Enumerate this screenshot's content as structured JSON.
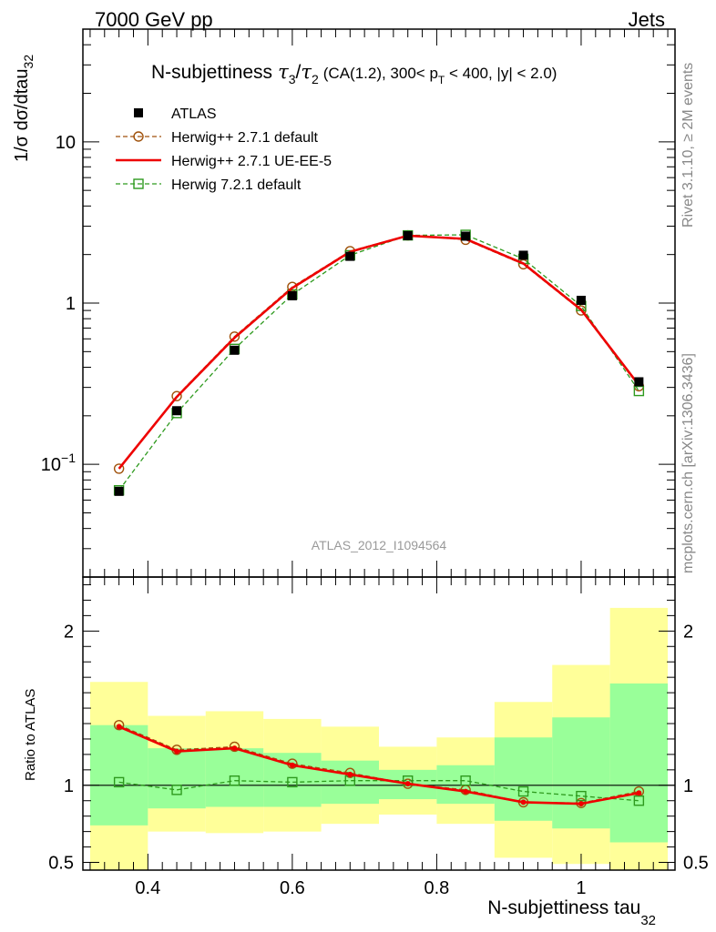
{
  "header": {
    "left": "7000 GeV pp",
    "right": "Jets"
  },
  "title": {
    "main": "N-subjettiness",
    "tau3": "τ",
    "tau3sub": "3",
    "slash": "/",
    "tau2": "τ",
    "tau2sub": "2",
    "detail_a": "(CA(1.2), 300< p",
    "detail_sub": "T",
    "detail_b": " < 400, |y| < 2.0)"
  },
  "side_labels": {
    "rivet": "Rivet 3.1.10, ≥ 2M events",
    "mcplots": "mcplots.cern.ch [arXiv:1306.3436]"
  },
  "watermark": "ATLAS_2012_I1094564",
  "colors": {
    "data": "#000000",
    "herwig_default": "#a0520c",
    "herwig_ueee5": "#ee0000",
    "herwig7": "#2e9a1e",
    "band_inner": "#99ff99",
    "band_outer": "#ffff99",
    "axis": "#000000"
  },
  "chart_data": {
    "type": "line",
    "top": {
      "ylabel_main": "1/σ dσ/dtau",
      "ylabel_sub": "32",
      "yscale": "log",
      "ylim": [
        0.02,
        50
      ],
      "ytick_labels": [
        {
          "value": 10,
          "label": "10",
          "sup": ""
        },
        {
          "value": 1,
          "label": "1",
          "sup": ""
        },
        {
          "value": 0.1,
          "label": "10",
          "sup": "−1"
        }
      ],
      "x": [
        0.36,
        0.44,
        0.52,
        0.6,
        0.68,
        0.76,
        0.84,
        0.92,
        1.0,
        1.08
      ],
      "bin_edges": [
        0.32,
        0.4,
        0.48,
        0.56,
        0.64,
        0.72,
        0.8,
        0.88,
        0.96,
        1.04,
        1.12
      ],
      "series": [
        {
          "name": "ATLAS",
          "style": "data",
          "values": [
            0.068,
            0.215,
            0.51,
            1.11,
            1.95,
            2.62,
            2.6,
            1.98,
            1.04,
            0.325
          ]
        },
        {
          "name": "Herwig++ 2.7.1 default",
          "style": "circle-dashed",
          "values": [
            0.094,
            0.265,
            0.62,
            1.26,
            2.1,
            2.63,
            2.47,
            1.74,
            0.9,
            0.305
          ]
        },
        {
          "name": "Herwig++ 2.7.1 UE-EE-5",
          "style": "solid",
          "values": [
            0.094,
            0.262,
            0.61,
            1.24,
            2.08,
            2.62,
            2.5,
            1.76,
            0.91,
            0.31
          ]
        },
        {
          "name": "Herwig 7.2.1 default",
          "style": "square-dashed",
          "values": [
            0.069,
            0.208,
            0.52,
            1.13,
            1.98,
            2.63,
            2.65,
            1.88,
            0.96,
            0.285
          ]
        }
      ]
    },
    "ratio": {
      "ylabel": "Ratio to ATLAS",
      "ylim": [
        0.45,
        2.35
      ],
      "ytick_labels": [
        {
          "value": 2,
          "label": "2"
        },
        {
          "value": 1,
          "label": "1"
        },
        {
          "value": 0.5,
          "label": "0.5"
        }
      ],
      "xlabel_main": "N-subjettiness tau",
      "xlabel_sub": "32",
      "xlim": [
        0.31,
        1.13
      ],
      "xtick_labels": [
        {
          "value": 0.4,
          "label": "0.4"
        },
        {
          "value": 0.6,
          "label": "0.6"
        },
        {
          "value": 0.8,
          "label": "0.8"
        },
        {
          "value": 1.0,
          "label": "1"
        }
      ],
      "band_inner": [
        [
          0.74,
          1.39
        ],
        [
          0.85,
          1.24
        ],
        [
          0.86,
          1.24
        ],
        [
          0.86,
          1.21
        ],
        [
          0.88,
          1.16
        ],
        [
          0.91,
          1.1
        ],
        [
          0.88,
          1.13
        ],
        [
          0.77,
          1.31
        ],
        [
          0.72,
          1.44
        ],
        [
          0.63,
          1.66
        ]
      ],
      "band_outer": [
        [
          0.35,
          1.67
        ],
        [
          0.7,
          1.45
        ],
        [
          0.69,
          1.48
        ],
        [
          0.7,
          1.43
        ],
        [
          0.75,
          1.38
        ],
        [
          0.81,
          1.25
        ],
        [
          0.75,
          1.31
        ],
        [
          0.53,
          1.54
        ],
        [
          0.49,
          1.78
        ],
        [
          0.42,
          2.15
        ]
      ],
      "series": [
        {
          "name": "Herwig++ 2.7.1 default",
          "style": "circle-dashed",
          "values": [
            1.39,
            1.23,
            1.25,
            1.14,
            1.08,
            1.01,
            0.97,
            0.89,
            0.885,
            0.96
          ]
        },
        {
          "name": "Herwig++ 2.7.1 UE-EE-5",
          "style": "solid",
          "values": [
            1.38,
            1.22,
            1.24,
            1.13,
            1.07,
            1.01,
            0.96,
            0.89,
            0.88,
            0.95
          ]
        },
        {
          "name": "Herwig 7.2.1 default",
          "style": "square-dashed",
          "values": [
            1.02,
            0.97,
            1.03,
            1.02,
            1.03,
            1.03,
            1.03,
            0.96,
            0.93,
            0.9
          ]
        }
      ]
    }
  }
}
